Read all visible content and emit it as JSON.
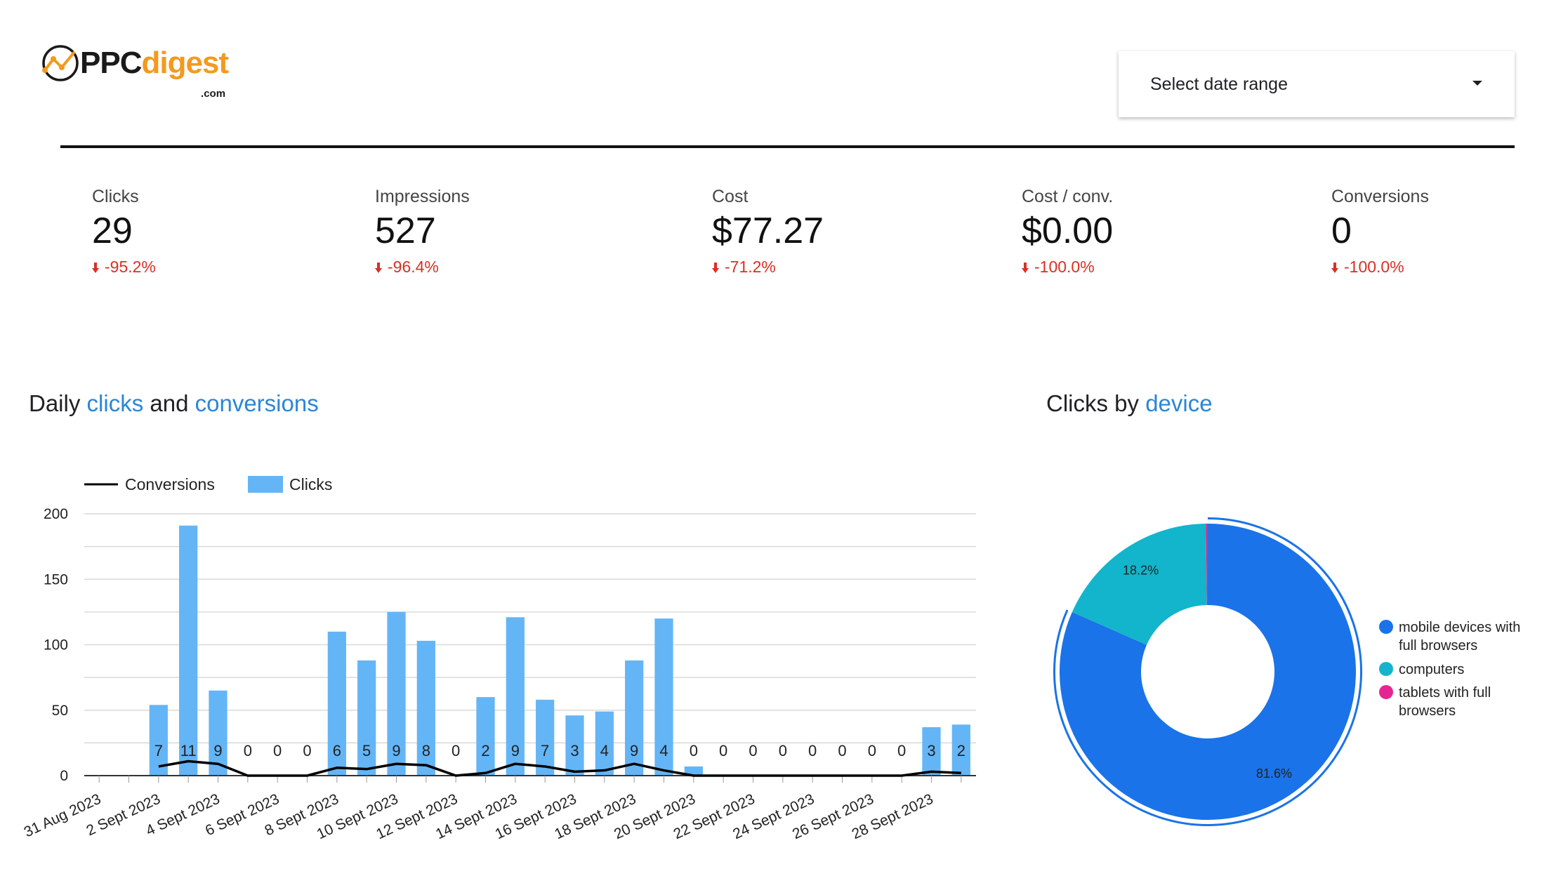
{
  "header": {
    "logo": {
      "brand_dark": "PPC",
      "brand_accent": "digest",
      "suffix": ".com",
      "icon": "chart-line-logo-icon"
    },
    "date_range": {
      "label": "Select date range",
      "icon": "caret-down-icon"
    }
  },
  "kpis": [
    {
      "label": "Clicks",
      "value": "29",
      "change": "-95.2%"
    },
    {
      "label": "Impressions",
      "value": "527",
      "change": "-96.4%"
    },
    {
      "label": "Cost",
      "value": "$77.27",
      "change": "-71.2%"
    },
    {
      "label": "Cost / conv.",
      "value": "$0.00",
      "change": "-100.0%"
    },
    {
      "label": "Conversions",
      "value": "0",
      "change": "-100.0%"
    }
  ],
  "colors": {
    "accent_text": "#2b86d6",
    "negative": "#d93025",
    "bar": "#64b5f6",
    "line": "#000000",
    "mobile": "#1a73e8",
    "computers": "#12b5cb",
    "tablets": "#e52592"
  },
  "daily_chart": {
    "title_parts": [
      "Daily ",
      "clicks",
      " and ",
      "conversions"
    ]
  },
  "device_chart": {
    "title_parts": [
      "Clicks by ",
      "device"
    ]
  },
  "chart_data": [
    {
      "type": "bar",
      "legend": [
        "Conversions",
        "Clicks"
      ],
      "legend_position": "top-left",
      "grid": true,
      "ylim": [
        0,
        200
      ],
      "yticks": [
        0,
        50,
        100,
        150,
        200
      ],
      "x_tick_labels": [
        "31 Aug 2023",
        "2 Sept 2023",
        "4 Sept 2023",
        "6 Sept 2023",
        "8 Sept 2023",
        "10 Sept 2023",
        "12 Sept 2023",
        "14 Sept 2023",
        "16 Sept 2023",
        "18 Sept 2023",
        "20 Sept 2023",
        "22 Sept 2023",
        "24 Sept 2023",
        "26 Sept 2023",
        "28 Sept 2023"
      ],
      "categories": [
        "31 Aug 2023",
        "1 Sept 2023",
        "2 Sept 2023",
        "3 Sept 2023",
        "4 Sept 2023",
        "5 Sept 2023",
        "6 Sept 2023",
        "7 Sept 2023",
        "8 Sept 2023",
        "9 Sept 2023",
        "10 Sept 2023",
        "11 Sept 2023",
        "12 Sept 2023",
        "13 Sept 2023",
        "14 Sept 2023",
        "15 Sept 2023",
        "16 Sept 2023",
        "17 Sept 2023",
        "18 Sept 2023",
        "19 Sept 2023",
        "20 Sept 2023",
        "21 Sept 2023",
        "22 Sept 2023",
        "23 Sept 2023",
        "24 Sept 2023",
        "25 Sept 2023",
        "26 Sept 2023",
        "27 Sept 2023",
        "28 Sept 2023",
        "29 Sept 2023"
      ],
      "series": [
        {
          "name": "Clicks",
          "type": "bar",
          "values": [
            0,
            0,
            54,
            191,
            65,
            0,
            0,
            0,
            110,
            88,
            125,
            103,
            0,
            60,
            121,
            58,
            46,
            49,
            88,
            120,
            7,
            0,
            0,
            0,
            0,
            0,
            0,
            0,
            37,
            39
          ]
        },
        {
          "name": "Conversions",
          "type": "line",
          "values": [
            null,
            null,
            7,
            11,
            9,
            0,
            0,
            0,
            6,
            5,
            9,
            8,
            0,
            2,
            9,
            7,
            3,
            4,
            9,
            4,
            0,
            0,
            0,
            0,
            0,
            0,
            0,
            0,
            3,
            2
          ],
          "data_labels": [
            "",
            "",
            "7",
            "11",
            "9",
            "0",
            "0",
            "0",
            "6",
            "5",
            "9",
            "8",
            "0",
            "2",
            "9",
            "7",
            "3",
            "4",
            "9",
            "4",
            "0",
            "0",
            "0",
            "0",
            "0",
            "0",
            "0",
            "0",
            "3",
            "2"
          ]
        }
      ]
    },
    {
      "type": "pie",
      "donut": true,
      "legend_position": "right",
      "slices": [
        {
          "label": "mobile devices with full browsers",
          "value": 81.6,
          "data_label": "81.6%"
        },
        {
          "label": "computers",
          "value": 18.2,
          "data_label": "18.2%"
        },
        {
          "label": "tablets with full browsers",
          "value": 0.2,
          "data_label": ""
        }
      ]
    }
  ]
}
